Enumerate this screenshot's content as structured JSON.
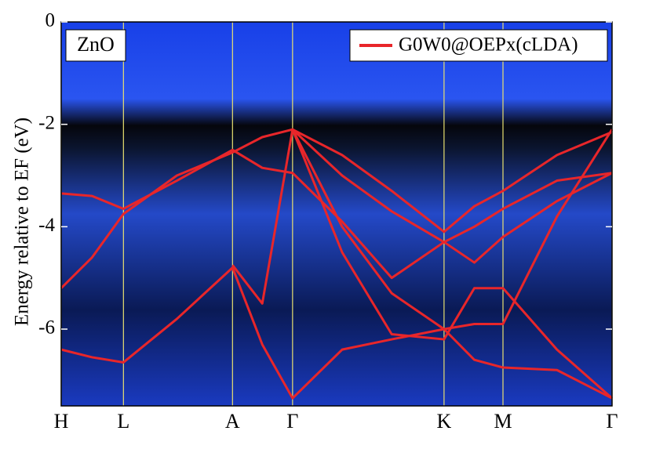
{
  "chart_data": {
    "type": "line",
    "annotation": "ZnO",
    "y_label": "Energy relative to EF (eV)",
    "x": [
      0,
      0.056,
      0.113,
      0.21,
      0.311,
      0.365,
      0.42,
      0.51,
      0.6,
      0.695,
      0.75,
      0.802,
      0.9,
      1.0
    ],
    "xlim": [
      0,
      1
    ],
    "xticks": [
      {
        "value": 0,
        "label": "H"
      },
      {
        "value": 0.113,
        "label": "L"
      },
      {
        "value": 0.311,
        "label": "A"
      },
      {
        "value": 0.42,
        "label": "Γ"
      },
      {
        "value": 0.695,
        "label": "K"
      },
      {
        "value": 0.802,
        "label": "M"
      },
      {
        "value": 1.0,
        "label": "Γ"
      }
    ],
    "ylim": [
      -7.5,
      0
    ],
    "yticks": [
      0,
      -2,
      -4,
      -6
    ],
    "grid": true,
    "grid_color": "#e8e070",
    "legend": "upper right",
    "series": [
      {
        "name": "G0W0@OEPx(cLDA)",
        "color": "#e8262a",
        "bands": [
          [
            -3.35,
            -3.4,
            -3.65,
            -3.1,
            -2.5,
            -2.85,
            -2.95,
            -3.9,
            -5.0,
            -4.3,
            -4.0,
            -3.65,
            -3.1,
            -2.95
          ],
          [
            -5.2,
            -4.6,
            -3.75,
            -3.0,
            -2.55,
            -2.25,
            -2.1,
            -2.6,
            -3.3,
            -4.1,
            -3.6,
            -3.3,
            -2.6,
            -2.15
          ],
          [
            null,
            null,
            null,
            null,
            null,
            null,
            -2.1,
            -3.0,
            -3.7,
            -4.3,
            -4.7,
            -4.2,
            -3.5,
            -2.95
          ],
          [
            -6.4,
            -6.55,
            -6.65,
            -5.8,
            -4.8,
            -6.3,
            -7.35,
            -6.4,
            -6.2,
            -6.0,
            -6.6,
            -6.75,
            -6.8,
            -7.35
          ],
          [
            null,
            null,
            null,
            null,
            -4.75,
            -5.5,
            -2.1,
            -4.0,
            -5.3,
            -6.0,
            -5.9,
            -5.9,
            -3.8,
            -2.1
          ],
          [
            null,
            null,
            null,
            null,
            null,
            null,
            -2.1,
            -4.5,
            -6.1,
            -6.2,
            -5.2,
            -5.2,
            -6.4,
            -7.35
          ]
        ]
      }
    ]
  }
}
